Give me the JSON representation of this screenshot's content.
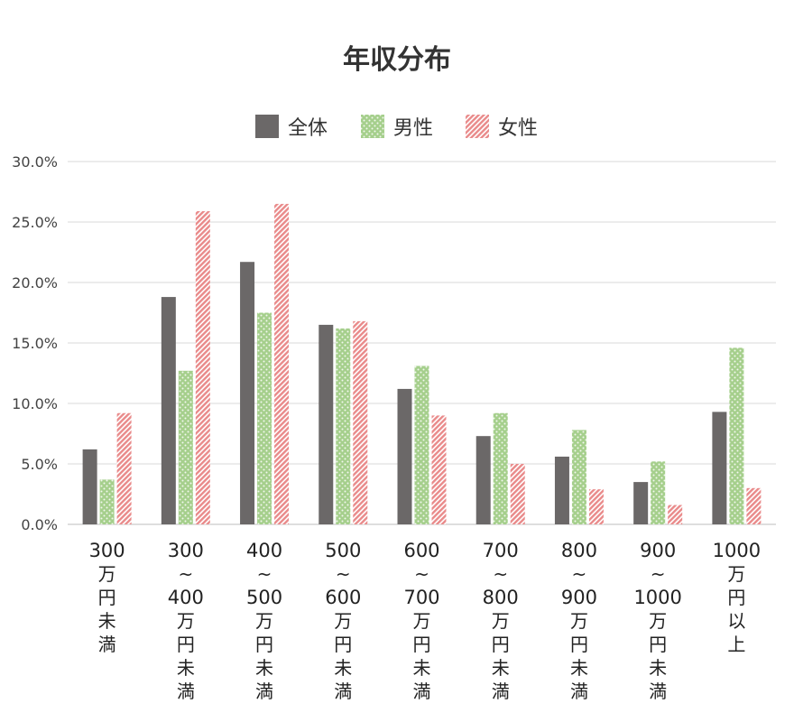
{
  "chart_data": {
    "type": "bar",
    "title": "年収分布",
    "xlabel": "",
    "ylabel": "",
    "ylim": [
      0,
      30
    ],
    "yticks": [
      "0.0%",
      "5.0%",
      "10.0%",
      "15.0%",
      "20.0%",
      "25.0%",
      "30.0%"
    ],
    "grid": true,
    "legend_position": "top-center",
    "categories": [
      [
        "300",
        "万",
        "円",
        "未",
        "満"
      ],
      [
        "300",
        "~",
        "400",
        "万",
        "円",
        "未",
        "満"
      ],
      [
        "400",
        "~",
        "500",
        "万",
        "円",
        "未",
        "満"
      ],
      [
        "500",
        "~",
        "600",
        "万",
        "円",
        "未",
        "満"
      ],
      [
        "600",
        "~",
        "700",
        "万",
        "円",
        "未",
        "満"
      ],
      [
        "700",
        "~",
        "800",
        "万",
        "円",
        "未",
        "満"
      ],
      [
        "800",
        "~",
        "900",
        "万",
        "円",
        "未",
        "満"
      ],
      [
        "900",
        "~",
        "1000",
        "万",
        "円",
        "未",
        "満"
      ],
      [
        "1000",
        "万",
        "円",
        "以",
        "上"
      ]
    ],
    "series": [
      {
        "name": "全体",
        "color": "#6b6868",
        "pattern": "solid",
        "values": [
          6.2,
          18.8,
          21.7,
          16.5,
          11.2,
          7.3,
          5.6,
          3.5,
          9.3
        ]
      },
      {
        "name": "男性",
        "color": "#a5cf8c",
        "pattern": "dots",
        "values": [
          3.7,
          12.7,
          17.5,
          16.2,
          13.1,
          9.2,
          7.8,
          5.2,
          14.6
        ]
      },
      {
        "name": "女性",
        "color": "#e98a8a",
        "pattern": "stripes",
        "values": [
          9.2,
          25.9,
          26.5,
          16.8,
          9.0,
          5.0,
          2.9,
          1.6,
          3.0
        ]
      }
    ]
  }
}
